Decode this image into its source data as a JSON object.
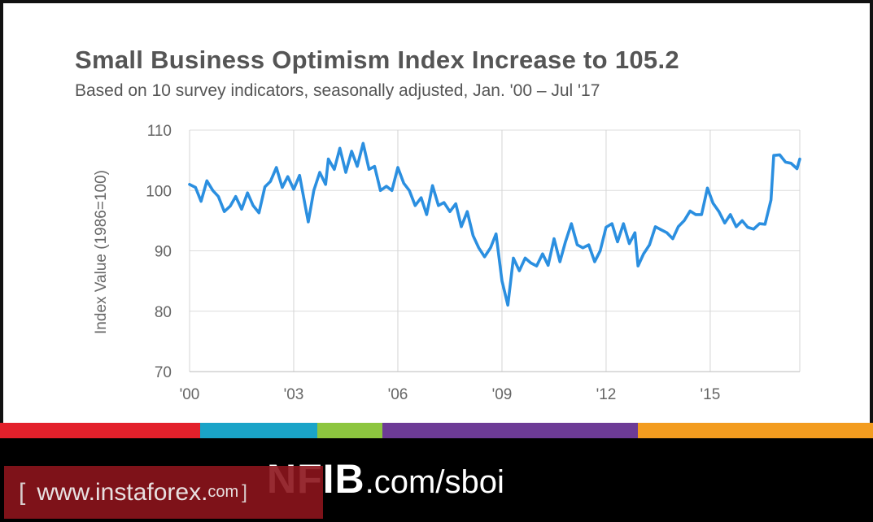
{
  "chart_data": {
    "type": "line",
    "title": "Small Business Optimism Index Increase to 105.2",
    "subtitle": "Based on 10 survey indicators, seasonally adjusted, Jan. '00 – Jul '17",
    "ylabel": "Index Value (1986=100)",
    "xlabel": "",
    "ylim": [
      70,
      110
    ],
    "y_ticks": [
      "70",
      "80",
      "90",
      "100",
      "110"
    ],
    "x_ticks": [
      {
        "year": 2000,
        "label": "'00"
      },
      {
        "year": 2003,
        "label": "'03"
      },
      {
        "year": 2006,
        "label": "'06"
      },
      {
        "year": 2009,
        "label": "'09"
      },
      {
        "year": 2012,
        "label": "'12"
      },
      {
        "year": 2015,
        "label": "'15"
      }
    ],
    "xlim": [
      2000.0,
      2017.58
    ],
    "grid": "vertical-at-ticks-and-horizontal",
    "line_color": "#2b8fe0",
    "series": [
      {
        "name": "",
        "points": [
          [
            2000.0,
            101.0
          ],
          [
            2000.17,
            100.5
          ],
          [
            2000.33,
            98.2
          ],
          [
            2000.5,
            101.6
          ],
          [
            2000.67,
            100.0
          ],
          [
            2000.83,
            99.0
          ],
          [
            2001.0,
            96.5
          ],
          [
            2001.17,
            97.4
          ],
          [
            2001.33,
            99.0
          ],
          [
            2001.5,
            96.9
          ],
          [
            2001.67,
            99.6
          ],
          [
            2001.83,
            97.5
          ],
          [
            2002.0,
            96.3
          ],
          [
            2002.17,
            100.6
          ],
          [
            2002.33,
            101.5
          ],
          [
            2002.5,
            103.8
          ],
          [
            2002.67,
            100.5
          ],
          [
            2002.83,
            102.3
          ],
          [
            2003.0,
            100.2
          ],
          [
            2003.17,
            102.5
          ],
          [
            2003.33,
            97.5
          ],
          [
            2003.42,
            94.8
          ],
          [
            2003.58,
            100.0
          ],
          [
            2003.75,
            103.0
          ],
          [
            2003.92,
            101.0
          ],
          [
            2004.0,
            105.2
          ],
          [
            2004.17,
            103.5
          ],
          [
            2004.33,
            107.0
          ],
          [
            2004.5,
            103.0
          ],
          [
            2004.67,
            106.5
          ],
          [
            2004.83,
            104.0
          ],
          [
            2005.0,
            107.8
          ],
          [
            2005.17,
            103.5
          ],
          [
            2005.33,
            104.0
          ],
          [
            2005.5,
            100.0
          ],
          [
            2005.67,
            100.7
          ],
          [
            2005.83,
            100.0
          ],
          [
            2006.0,
            103.8
          ],
          [
            2006.17,
            101.2
          ],
          [
            2006.33,
            100.0
          ],
          [
            2006.5,
            97.5
          ],
          [
            2006.67,
            98.8
          ],
          [
            2006.83,
            96.0
          ],
          [
            2007.0,
            100.8
          ],
          [
            2007.17,
            97.5
          ],
          [
            2007.33,
            98.0
          ],
          [
            2007.5,
            96.5
          ],
          [
            2007.67,
            97.8
          ],
          [
            2007.83,
            94.0
          ],
          [
            2008.0,
            96.5
          ],
          [
            2008.17,
            92.5
          ],
          [
            2008.33,
            90.5
          ],
          [
            2008.5,
            89.0
          ],
          [
            2008.67,
            90.5
          ],
          [
            2008.83,
            92.8
          ],
          [
            2009.0,
            85.0
          ],
          [
            2009.17,
            81.0
          ],
          [
            2009.33,
            88.8
          ],
          [
            2009.5,
            86.7
          ],
          [
            2009.67,
            88.8
          ],
          [
            2009.83,
            88.0
          ],
          [
            2010.0,
            87.5
          ],
          [
            2010.17,
            89.5
          ],
          [
            2010.33,
            87.6
          ],
          [
            2010.5,
            92.0
          ],
          [
            2010.67,
            88.2
          ],
          [
            2010.83,
            91.5
          ],
          [
            2011.0,
            94.5
          ],
          [
            2011.17,
            91.0
          ],
          [
            2011.33,
            90.5
          ],
          [
            2011.5,
            91.0
          ],
          [
            2011.67,
            88.2
          ],
          [
            2011.83,
            90.0
          ],
          [
            2012.0,
            93.9
          ],
          [
            2012.17,
            94.5
          ],
          [
            2012.33,
            91.5
          ],
          [
            2012.5,
            94.5
          ],
          [
            2012.67,
            91.2
          ],
          [
            2012.83,
            93.0
          ],
          [
            2012.92,
            87.5
          ],
          [
            2013.08,
            89.5
          ],
          [
            2013.25,
            91.0
          ],
          [
            2013.42,
            94.0
          ],
          [
            2013.58,
            93.5
          ],
          [
            2013.75,
            93.0
          ],
          [
            2013.92,
            92.0
          ],
          [
            2014.08,
            94.0
          ],
          [
            2014.25,
            95.0
          ],
          [
            2014.42,
            96.6
          ],
          [
            2014.58,
            96.0
          ],
          [
            2014.75,
            96.0
          ],
          [
            2014.92,
            100.4
          ],
          [
            2015.08,
            97.9
          ],
          [
            2015.25,
            96.5
          ],
          [
            2015.42,
            94.6
          ],
          [
            2015.58,
            96.0
          ],
          [
            2015.75,
            94.0
          ],
          [
            2015.92,
            95.0
          ],
          [
            2016.08,
            93.9
          ],
          [
            2016.25,
            93.6
          ],
          [
            2016.42,
            94.5
          ],
          [
            2016.58,
            94.4
          ],
          [
            2016.75,
            98.4
          ],
          [
            2016.83,
            105.8
          ],
          [
            2017.0,
            105.9
          ],
          [
            2017.17,
            104.7
          ],
          [
            2017.33,
            104.5
          ],
          [
            2017.5,
            103.6
          ],
          [
            2017.58,
            105.2
          ]
        ]
      }
    ]
  },
  "footer": {
    "band_colors": [
      "#e3202b",
      "#1aa4c8",
      "#8dc63f",
      "#6d3b96",
      "#f39c1f"
    ],
    "brand_logo": "NFIB",
    "brand_url": ".com/sboi",
    "watermark": {
      "open": "[",
      "text": "www.instaforex.",
      "com": "com",
      "close": "]"
    }
  }
}
